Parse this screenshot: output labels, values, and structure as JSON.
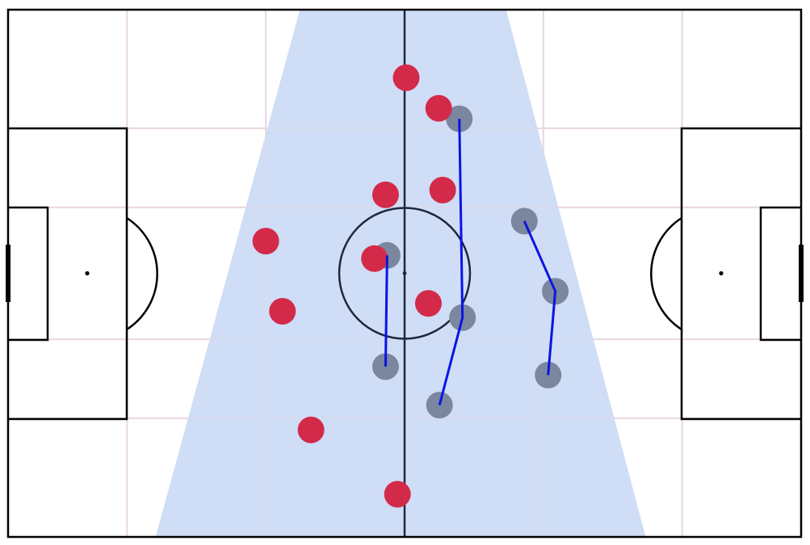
{
  "colors": {
    "background": "#ffffff",
    "pitch_lines": "#000000",
    "grid_lines": "#e9d8df",
    "halfway_line": "#1c2840",
    "centre_circle": "#1c2840",
    "highlight_zone": "#cfddf6",
    "red_team": "#d42a4a",
    "grey_team": "#7a879e",
    "pass_lines": "#0a14e6"
  },
  "red_players": [
    {
      "x": 50.2,
      "y": 87.1
    },
    {
      "x": 54.3,
      "y": 81.3
    },
    {
      "x": 47.6,
      "y": 64.9
    },
    {
      "x": 54.8,
      "y": 65.8
    },
    {
      "x": 32.5,
      "y": 56.1
    },
    {
      "x": 46.2,
      "y": 52.8
    },
    {
      "x": 34.6,
      "y": 42.8
    },
    {
      "x": 53.0,
      "y": 44.3
    },
    {
      "x": 38.2,
      "y": 20.3
    },
    {
      "x": 49.1,
      "y": 8.1
    }
  ],
  "grey_players": [
    {
      "x": 56.9,
      "y": 79.3
    },
    {
      "x": 65.1,
      "y": 59.9
    },
    {
      "x": 47.8,
      "y": 53.4
    },
    {
      "x": 69.0,
      "y": 46.6
    },
    {
      "x": 57.3,
      "y": 41.6
    },
    {
      "x": 47.6,
      "y": 32.3
    },
    {
      "x": 68.1,
      "y": 30.7
    },
    {
      "x": 54.4,
      "y": 25.0
    }
  ],
  "pass_lines": [
    {
      "points": [
        [
          56.9,
          79.3
        ],
        [
          57.3,
          41.6
        ],
        [
          54.4,
          25.0
        ]
      ]
    },
    {
      "points": [
        [
          47.8,
          53.4
        ],
        [
          47.6,
          32.3
        ]
      ]
    },
    {
      "points": [
        [
          65.1,
          59.9
        ],
        [
          69.0,
          46.6
        ],
        [
          68.1,
          30.7
        ]
      ]
    }
  ],
  "highlight_zone": {
    "top_x": [
      36.8,
      62.8
    ],
    "bottom_x": [
      18.6,
      80.4
    ]
  },
  "vertical_grid_x": [
    15.0,
    32.5,
    67.5,
    85.0
  ],
  "horizontal_grid_y": [
    77.5,
    62.5,
    37.5,
    22.5
  ]
}
